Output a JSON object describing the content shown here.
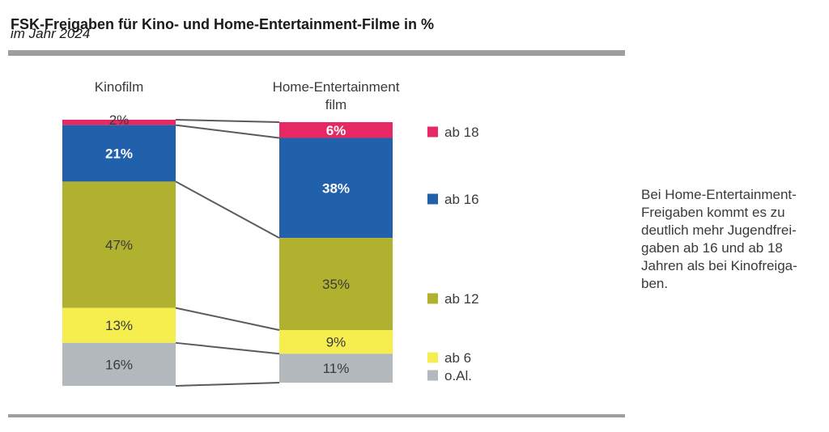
{
  "header": {
    "title": "FSK-Freigaben für Kino- und Home-Entertainment-Filme in %",
    "subtitle": "im Jahr 2024"
  },
  "annotation": {
    "lines": [
      "Bei Home-Entertainment-",
      "Freigaben kommt es zu",
      "deutlich mehr Jugendfrei-",
      "gaben ab 16 und ab 18",
      "Jahren als bei Kinofreiga-",
      "ben."
    ]
  },
  "chart_data": {
    "type": "bar",
    "subtype": "paired-stacked-columns-with-connectors",
    "title": "FSK-Freigaben für Kino- und Home-Entertainment-Filme in %",
    "subtitle": "im Jahr 2024",
    "unit": "%",
    "categories": [
      "Kinofilm",
      "Home-Entertainment\nfilm"
    ],
    "segments": [
      "ab 18",
      "ab 16",
      "ab 12",
      "ab 6",
      "o.Al."
    ],
    "colors": {
      "ab 18": "#e62964",
      "ab 16": "#2160ab",
      "ab 12": "#b0b12f",
      "ab 6": "#f6ee4e",
      "o.Al.": "#b2b8bb"
    },
    "series": [
      {
        "name": "Kinofilm",
        "values": [
          2,
          21,
          47,
          13,
          16
        ],
        "labels": [
          "2%",
          "21%",
          "47%",
          "13%",
          "16%"
        ],
        "label_styles": [
          "outside",
          "light",
          "dark",
          "dark",
          "dark"
        ]
      },
      {
        "name": "Home-Entertainment film",
        "values": [
          6,
          38,
          35,
          9,
          11
        ],
        "labels": [
          "6%",
          "38%",
          "35%",
          "9%",
          "11%"
        ],
        "label_styles": [
          "light",
          "light",
          "dark",
          "dark",
          "dark"
        ]
      }
    ],
    "legend": [
      "ab 18",
      "ab 16",
      "ab 12",
      "ab 6",
      "o.Al."
    ],
    "legend_position": "right-of-bars",
    "value_labels": "inside",
    "grid": false
  },
  "style": {
    "connector_color": "#5b5b5b",
    "text_dark": "#3a3a3a",
    "text_light": "#ffffff",
    "rule_color": "#9d9ea0"
  }
}
